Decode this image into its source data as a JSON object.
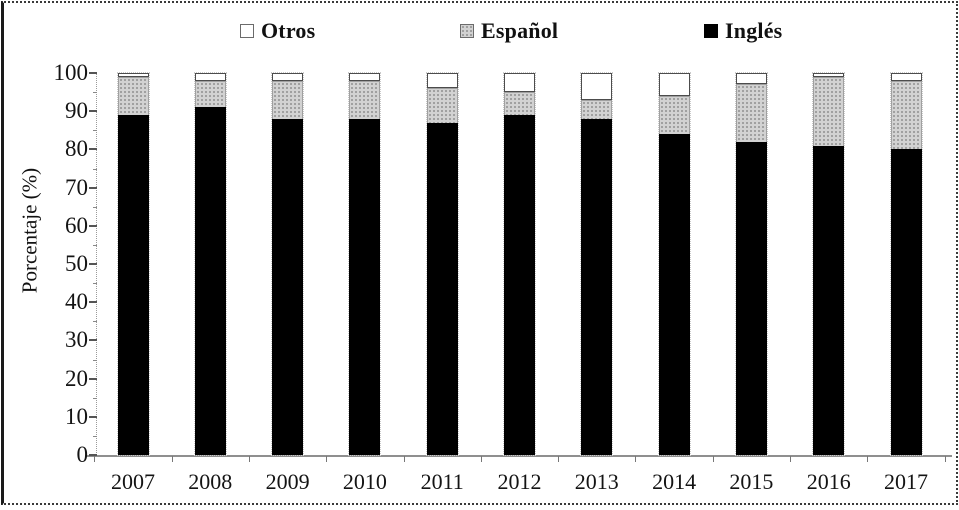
{
  "figure": {
    "y_axis_title": "Porcentaje (%)"
  },
  "legend": {
    "items": [
      {
        "label": "Otros",
        "swatch": "white-square"
      },
      {
        "label": "Español",
        "swatch": "halftone-gray-square"
      },
      {
        "label": "Inglés",
        "swatch": "black-square"
      }
    ]
  },
  "colors": {
    "ingles": "#000000",
    "espanol_base": "#d2d2d2",
    "espanol_dots": "#8f8f8f",
    "otros": "#ffffff",
    "axis": "#8f8f8f"
  },
  "chart_data": {
    "type": "bar",
    "stacked": true,
    "title": "",
    "xlabel": "",
    "ylabel": "Porcentaje (%)",
    "ylim": [
      0,
      100
    ],
    "ytick_step": 10,
    "yticks": [
      "0",
      "10",
      "20",
      "30",
      "40",
      "50",
      "60",
      "70",
      "80",
      "90",
      "100"
    ],
    "grid": false,
    "legend_position": "top",
    "categories": [
      "2007",
      "2008",
      "2009",
      "2010",
      "2011",
      "2012",
      "2013",
      "2014",
      "2015",
      "2016",
      "2017"
    ],
    "series": [
      {
        "name": "Inglés",
        "color": "#000000",
        "pattern": "solid",
        "values": [
          89,
          91,
          88,
          88,
          87,
          89,
          88,
          84,
          82,
          81,
          80
        ]
      },
      {
        "name": "Español",
        "color": "#d2d2d2",
        "pattern": "halftone-dots",
        "values": [
          10,
          7,
          10,
          10,
          9,
          6,
          5,
          10,
          15,
          18,
          18
        ]
      },
      {
        "name": "Otros",
        "color": "#ffffff",
        "pattern": "outline",
        "values": [
          1,
          2,
          2,
          2,
          4,
          5,
          7,
          6,
          3,
          1,
          2
        ]
      }
    ]
  }
}
